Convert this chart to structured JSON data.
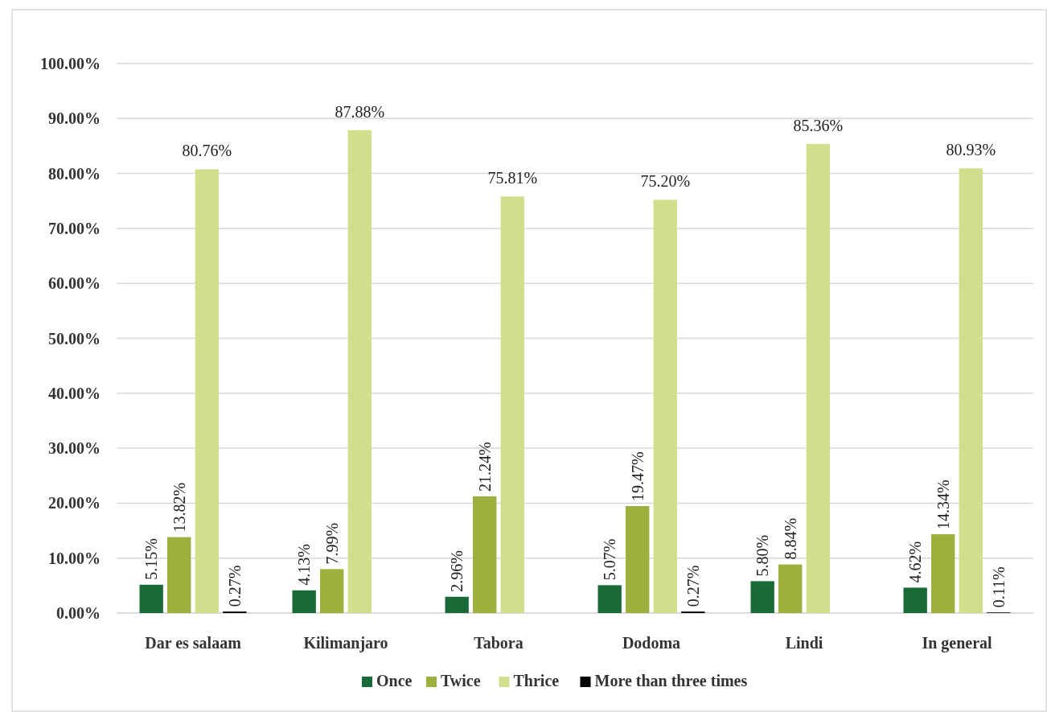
{
  "chart_data": {
    "type": "bar",
    "categories": [
      "Dar es salaam",
      "Kilimanjaro",
      "Tabora",
      "Dodoma",
      "Lindi",
      "In general"
    ],
    "series": [
      {
        "name": "Once",
        "color": "#1a6a37",
        "values": [
          5.15,
          4.13,
          2.96,
          5.07,
          5.8,
          4.62
        ],
        "value_labels": [
          "5.15%",
          "4.13%",
          "2.96%",
          "5.07%",
          "5.80%",
          "4.62%"
        ]
      },
      {
        "name": "Twice",
        "color": "#9cb03d",
        "values": [
          13.82,
          7.99,
          21.24,
          19.47,
          8.84,
          14.34
        ],
        "value_labels": [
          "13.82%",
          "7.99%",
          "21.24%",
          "19.47%",
          "8.84%",
          "14.34%"
        ]
      },
      {
        "name": "Thrice",
        "color": "#d1df8d",
        "values": [
          80.76,
          87.88,
          75.81,
          75.2,
          85.36,
          80.93
        ],
        "value_labels": [
          "80.76%",
          "87.88%",
          "75.81%",
          "75.20%",
          "85.36%",
          "80.93%"
        ]
      },
      {
        "name": "More than three times",
        "color": "#000000",
        "values": [
          0.27,
          null,
          null,
          0.27,
          null,
          0.11
        ],
        "value_labels": [
          "0.27%",
          null,
          null,
          "0.27%",
          null,
          "0.11%"
        ]
      }
    ],
    "ylim": [
      0,
      100
    ],
    "yticks": [
      {
        "value": 0,
        "label": "0.00%"
      },
      {
        "value": 10,
        "label": "10.00%"
      },
      {
        "value": 20,
        "label": "20.00%"
      },
      {
        "value": 30,
        "label": "30.00%"
      },
      {
        "value": 40,
        "label": "40.00%"
      },
      {
        "value": 50,
        "label": "50.00%"
      },
      {
        "value": 60,
        "label": "60.00%"
      },
      {
        "value": 70,
        "label": "70.00%"
      },
      {
        "value": 80,
        "label": "80.00%"
      },
      {
        "value": 90,
        "label": "90.00%"
      },
      {
        "value": 100,
        "label": "100.00%"
      }
    ],
    "grid": "y",
    "legend": "bottom"
  }
}
